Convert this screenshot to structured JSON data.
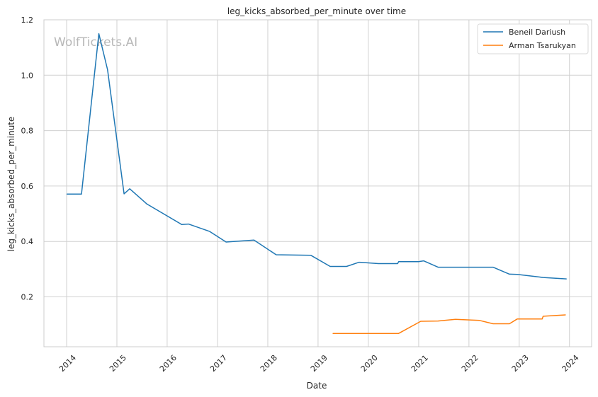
{
  "chart_data": {
    "type": "line",
    "title": "leg_kicks_absorbed_per_minute over time",
    "xlabel": "Date",
    "ylabel": "leg_kicks_absorbed_per_minute",
    "watermark": "WolfTickets.AI",
    "xlim": [
      "2013-07-20",
      "2024-06-10"
    ],
    "ylim": [
      0.02,
      1.2
    ],
    "x_ticks": [
      "2014",
      "2015",
      "2016",
      "2017",
      "2018",
      "2019",
      "2020",
      "2021",
      "2022",
      "2023",
      "2024"
    ],
    "y_ticks": [
      0.2,
      0.4,
      0.6,
      0.8,
      1.0,
      1.2
    ],
    "y_tick_labels": [
      "0.2",
      "0.4",
      "0.6",
      "0.8",
      "1.0",
      "1.2"
    ],
    "grid": true,
    "legend_position": "top-right",
    "series": [
      {
        "name": "Beneil Dariush",
        "color": "#1f77b4",
        "points": [
          [
            "2014-01-04",
            0.571
          ],
          [
            "2014-04-19",
            0.571
          ],
          [
            "2014-08-23",
            1.15
          ],
          [
            "2014-10-25",
            1.02
          ],
          [
            "2015-02-22",
            0.572
          ],
          [
            "2015-04-04",
            0.59
          ],
          [
            "2015-08-08",
            0.535
          ],
          [
            "2016-04-16",
            0.461
          ],
          [
            "2016-06-04",
            0.463
          ],
          [
            "2016-11-05",
            0.436
          ],
          [
            "2017-03-04",
            0.398
          ],
          [
            "2017-09-23",
            0.405
          ],
          [
            "2018-03-03",
            0.352
          ],
          [
            "2018-11-10",
            0.35
          ],
          [
            "2019-03-30",
            0.31
          ],
          [
            "2019-07-27",
            0.31
          ],
          [
            "2019-10-26",
            0.325
          ],
          [
            "2020-03-14",
            0.32
          ],
          [
            "2020-08-01",
            0.32
          ],
          [
            "2020-08-08",
            0.327
          ],
          [
            "2020-12-31",
            0.327
          ],
          [
            "2021-02-06",
            0.33
          ],
          [
            "2021-05-22",
            0.307
          ],
          [
            "2022-06-25",
            0.307
          ],
          [
            "2022-10-22",
            0.282
          ],
          [
            "2022-12-17",
            0.281
          ],
          [
            "2023-06-24",
            0.27
          ],
          [
            "2023-12-09",
            0.265
          ]
        ]
      },
      {
        "name": "Arman Tsarukyan",
        "color": "#ff7f0e",
        "points": [
          [
            "2019-04-20",
            0.068
          ],
          [
            "2020-08-08",
            0.068
          ],
          [
            "2021-01-16",
            0.112
          ],
          [
            "2021-05-22",
            0.113
          ],
          [
            "2021-09-25",
            0.119
          ],
          [
            "2022-03-19",
            0.115
          ],
          [
            "2022-06-25",
            0.103
          ],
          [
            "2022-10-22",
            0.103
          ],
          [
            "2022-12-17",
            0.12
          ],
          [
            "2023-06-17",
            0.12
          ],
          [
            "2023-06-24",
            0.13
          ],
          [
            "2023-12-02",
            0.135
          ]
        ]
      }
    ]
  }
}
